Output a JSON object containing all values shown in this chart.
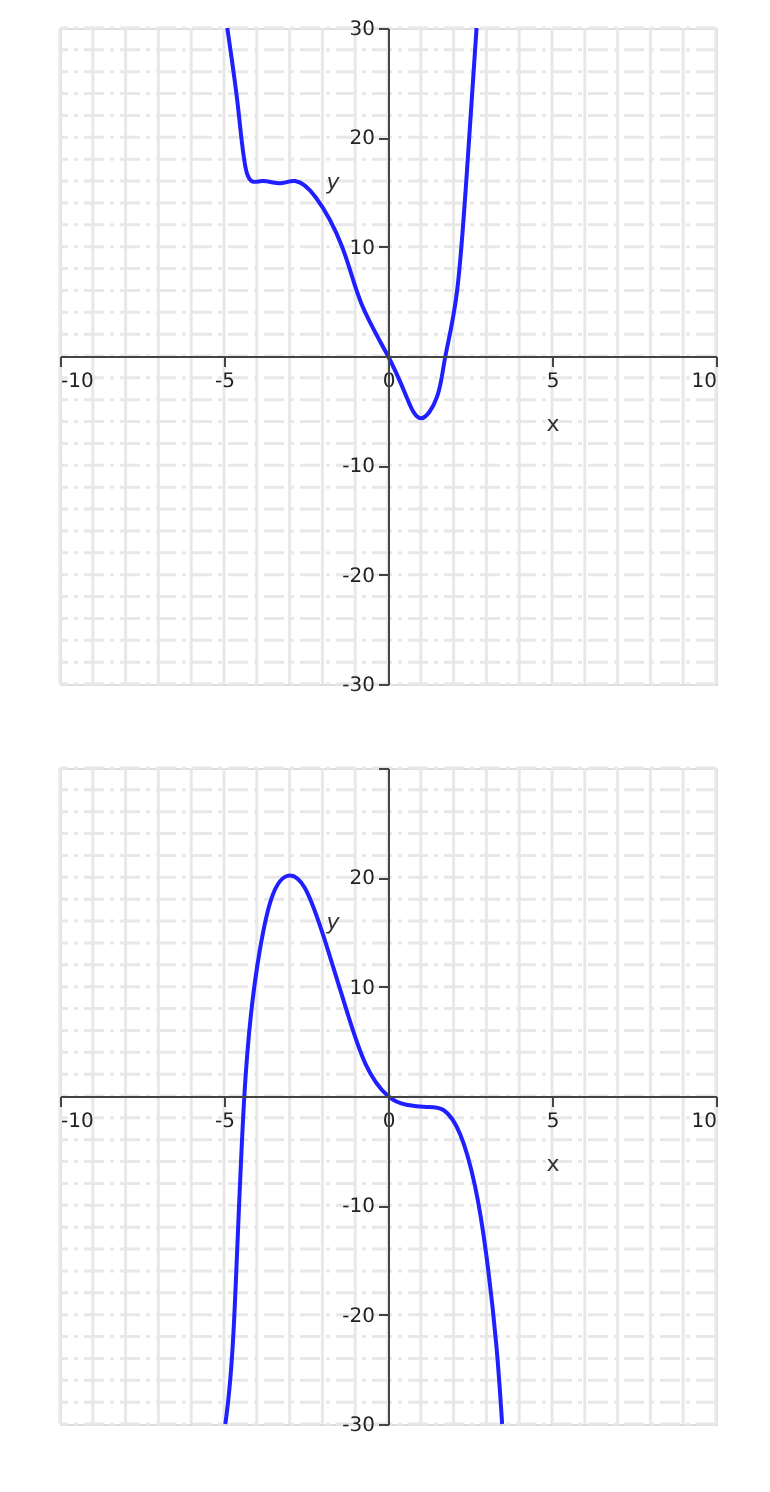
{
  "chart_data": [
    {
      "type": "line",
      "xlabel": "x",
      "ylabel": "y",
      "x": [
        -4.9,
        -4.57,
        -4.3,
        -3.85,
        -3.3,
        -2.83,
        -2.2,
        -1.4,
        -0.8,
        0,
        0.56,
        1.0,
        1.5,
        1.75,
        2.1,
        2.4,
        2.7
      ],
      "values": [
        30,
        22.7,
        16.7,
        16,
        15.8,
        16,
        14.5,
        10,
        4.7,
        0,
        -3.7,
        -5.7,
        -3.7,
        0,
        5.8,
        16.6,
        30
      ],
      "color": "#1f1fff",
      "xlim": [
        -10,
        10
      ],
      "ylim": [
        -30,
        30
      ],
      "xticks": [
        -10,
        -5,
        0,
        5,
        10
      ],
      "yticks": [
        -30,
        -20,
        -10,
        10,
        20,
        30
      ],
      "grid": true
    },
    {
      "type": "line",
      "xlabel": "x",
      "ylabel": "y",
      "x": [
        -4.96,
        -4.7,
        -4.38,
        -3.97,
        -3.56,
        -3.1,
        -2.53,
        -1.9,
        -1.3,
        -0.68,
        0,
        0.56,
        1.17,
        1.7,
        2.2,
        2.65,
        3.0,
        3.3,
        3.48
      ],
      "values": [
        -30,
        -21,
        0,
        12.2,
        18,
        20.1,
        19,
        14,
        8.2,
        2.9,
        0,
        -0.8,
        -1.0,
        -1.3,
        -3.5,
        -8.2,
        -14.6,
        -22.7,
        -30
      ],
      "color": "#1f1fff",
      "xlim": [
        -10,
        10
      ],
      "ylim": [
        -30,
        30
      ],
      "xticks": [
        -10,
        -5,
        0,
        5,
        10
      ],
      "yticks": [
        -30,
        -20,
        -10,
        10,
        20,
        {
          "value": 30,
          "label": null
        }
      ],
      "grid": true
    }
  ]
}
